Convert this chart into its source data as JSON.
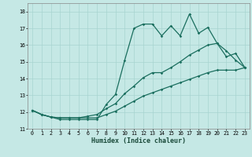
{
  "title": "",
  "xlabel": "Humidex (Indice chaleur)",
  "ylabel": "",
  "xlim": [
    -0.5,
    23.5
  ],
  "ylim": [
    11.0,
    18.5
  ],
  "yticks": [
    11,
    12,
    13,
    14,
    15,
    16,
    17,
    18
  ],
  "xticks": [
    0,
    1,
    2,
    3,
    4,
    5,
    6,
    7,
    8,
    9,
    10,
    11,
    12,
    13,
    14,
    15,
    16,
    17,
    18,
    19,
    20,
    21,
    22,
    23
  ],
  "bg_color": "#c5e8e5",
  "grid_color": "#a8d4d0",
  "line_color": "#1a6e5e",
  "line1_x": [
    0,
    1,
    2,
    3,
    4,
    5,
    6,
    7,
    8,
    9,
    10,
    11,
    12,
    13,
    14,
    15,
    16,
    17,
    18,
    19,
    20,
    21,
    22,
    23
  ],
  "line1_y": [
    12.1,
    11.85,
    11.7,
    11.55,
    11.55,
    11.55,
    11.55,
    11.55,
    12.45,
    13.05,
    15.1,
    17.0,
    17.25,
    17.25,
    16.55,
    17.15,
    16.55,
    17.85,
    16.7,
    17.05,
    16.1,
    15.3,
    15.5,
    14.65
  ],
  "line2_x": [
    0,
    1,
    2,
    3,
    4,
    5,
    6,
    7,
    8,
    9,
    10,
    11,
    12,
    13,
    14,
    15,
    16,
    17,
    18,
    19,
    20,
    21,
    22,
    23
  ],
  "line2_y": [
    12.1,
    11.85,
    11.7,
    11.65,
    11.65,
    11.65,
    11.75,
    11.85,
    12.2,
    12.5,
    13.1,
    13.55,
    14.05,
    14.35,
    14.35,
    14.65,
    15.0,
    15.4,
    15.7,
    16.0,
    16.1,
    15.65,
    15.1,
    14.65
  ],
  "line3_x": [
    0,
    1,
    2,
    3,
    4,
    5,
    6,
    7,
    8,
    9,
    10,
    11,
    12,
    13,
    14,
    15,
    16,
    17,
    18,
    19,
    20,
    21,
    22,
    23
  ],
  "line3_y": [
    12.1,
    11.85,
    11.7,
    11.65,
    11.65,
    11.65,
    11.65,
    11.65,
    11.85,
    12.05,
    12.35,
    12.65,
    12.95,
    13.15,
    13.35,
    13.55,
    13.75,
    13.95,
    14.15,
    14.35,
    14.5,
    14.5,
    14.5,
    14.65
  ]
}
